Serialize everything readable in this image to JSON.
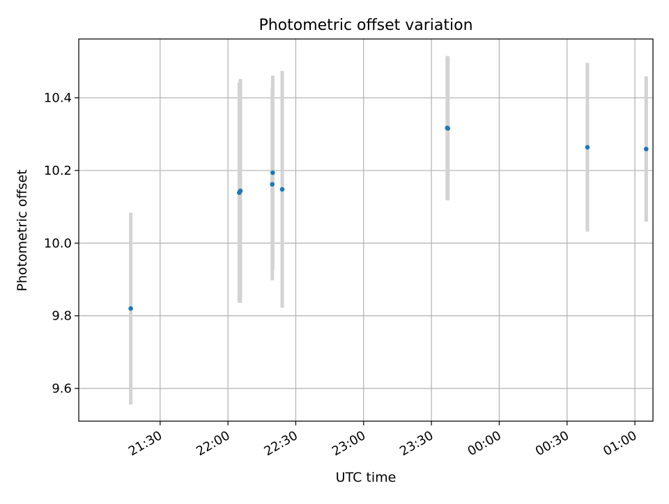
{
  "chart_data": {
    "type": "scatter",
    "title": "Photometric offset variation",
    "xlabel": "UTC time",
    "ylabel": "Photometric offset",
    "x_unit": "minutes after 21:00 UTC (ticks wrap past midnight)",
    "xlim": [
      -6,
      248
    ],
    "ylim": [
      9.51,
      10.562
    ],
    "x_ticks": [
      {
        "value": 30,
        "label": "21:30"
      },
      {
        "value": 60,
        "label": "22:00"
      },
      {
        "value": 90,
        "label": "22:30"
      },
      {
        "value": 120,
        "label": "23:00"
      },
      {
        "value": 150,
        "label": "23:30"
      },
      {
        "value": 180,
        "label": "00:00"
      },
      {
        "value": 210,
        "label": "00:30"
      },
      {
        "value": 240,
        "label": "01:00"
      }
    ],
    "y_ticks": [
      {
        "value": 9.6,
        "label": "9.6"
      },
      {
        "value": 9.8,
        "label": "9.8"
      },
      {
        "value": 10.0,
        "label": "10.0"
      },
      {
        "value": 10.2,
        "label": "10.2"
      },
      {
        "value": 10.4,
        "label": "10.4"
      }
    ],
    "grid": true,
    "marker_color": "#1f77b4",
    "errorbar_color": "#d3d3d3",
    "points": [
      {
        "x": 17.0,
        "y": 9.82,
        "err": 0.264
      },
      {
        "x": 65.0,
        "y": 10.139,
        "err": 0.303
      },
      {
        "x": 65.5,
        "y": 10.144,
        "err": 0.308
      },
      {
        "x": 79.6,
        "y": 10.162,
        "err": 0.264
      },
      {
        "x": 79.8,
        "y": 10.194,
        "err": 0.267
      },
      {
        "x": 84.0,
        "y": 10.148,
        "err": 0.326
      },
      {
        "x": 157.0,
        "y": 10.317,
        "err": 0.198
      },
      {
        "x": 157.3,
        "y": 10.316,
        "err": 0.198
      },
      {
        "x": 219.0,
        "y": 10.264,
        "err": 0.232
      },
      {
        "x": 245.0,
        "y": 10.259,
        "err": 0.2
      }
    ]
  }
}
